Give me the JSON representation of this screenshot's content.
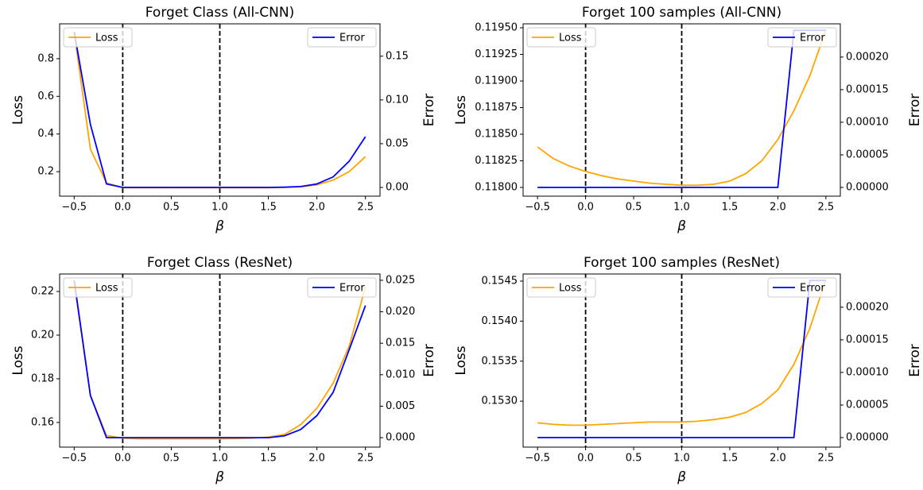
{
  "chart_data": [
    {
      "type": "line",
      "title": "Forget Class (All-CNN)",
      "xlabel": "β",
      "ylabel": "Loss",
      "y2label": "Error",
      "x": [
        -0.5,
        -0.333,
        -0.167,
        0,
        0.167,
        0.333,
        0.5,
        0.667,
        0.833,
        1,
        1.167,
        1.333,
        1.5,
        1.667,
        1.833,
        2,
        2.167,
        2.333,
        2.5
      ],
      "xlim": [
        -0.65,
        2.65
      ],
      "xticks": [
        {
          "value": -0.5,
          "label": "−0.5"
        },
        {
          "value": 0,
          "label": "0.0"
        },
        0.5,
        {
          "value": 1,
          "label": "1.0"
        },
        1.5,
        {
          "value": 2,
          "label": "2.0"
        },
        2.5
      ],
      "ylim": [
        0.07,
        0.985
      ],
      "yticks": [
        0.2,
        0.4,
        0.6,
        0.8
      ],
      "y2lim": [
        -0.01,
        0.187
      ],
      "y2ticks": [
        {
          "value": 0,
          "label": "0.00"
        },
        0.05,
        {
          "value": 0.1,
          "label": "0.10"
        },
        0.15
      ],
      "vlines": [
        0,
        1
      ],
      "legend": [
        "upper left",
        "upper right"
      ],
      "series": [
        {
          "name": "Loss",
          "color": "#ffa500",
          "axis": "y",
          "values": [
            0.94,
            0.32,
            0.14,
            0.115,
            0.115,
            0.115,
            0.115,
            0.115,
            0.115,
            0.115,
            0.115,
            0.115,
            0.115,
            0.116,
            0.12,
            0.13,
            0.155,
            0.2,
            0.28
          ]
        },
        {
          "name": "Error",
          "color": "#0000ff",
          "axis": "y2",
          "values": [
            0.178,
            0.072,
            0.004,
            0,
            0,
            0,
            0,
            0,
            0,
            0,
            0,
            0,
            0,
            0.0003,
            0.001,
            0.004,
            0.012,
            0.03,
            0.058
          ]
        }
      ]
    },
    {
      "type": "line",
      "title": "Forget 100 samples (All-CNN)",
      "xlabel": "β",
      "ylabel": "Loss",
      "y2label": "Error",
      "x": [
        -0.5,
        -0.333,
        -0.167,
        0,
        0.167,
        0.333,
        0.5,
        0.667,
        0.833,
        1,
        1.167,
        1.333,
        1.5,
        1.667,
        1.833,
        2,
        2.167,
        2.333,
        2.5
      ],
      "xlim": [
        -0.65,
        2.65
      ],
      "xticks": [
        {
          "value": -0.5,
          "label": "−0.5"
        },
        {
          "value": 0,
          "label": "0.0"
        },
        0.5,
        {
          "value": 1,
          "label": "1.0"
        },
        1.5,
        {
          "value": 2,
          "label": "2.0"
        },
        2.5
      ],
      "ylim": [
        0.117918,
        0.119537
      ],
      "yticks": [
        {
          "value": 0.118,
          "label": "0.11800"
        },
        0.11825,
        {
          "value": 0.1185,
          "label": "0.11850"
        },
        0.11875,
        {
          "value": 0.119,
          "label": "0.11900"
        },
        0.11925,
        {
          "value": 0.1195,
          "label": "0.11950"
        }
      ],
      "y2lim": [
        -1.34e-05,
        0.000251
      ],
      "y2ticks": [
        {
          "value": 0,
          "label": "0.00000"
        },
        {
          "value": 5e-05,
          "label": "0.00005"
        },
        {
          "value": 0.0001,
          "label": "0.00010"
        },
        {
          "value": 0.00015,
          "label": "0.00015"
        },
        {
          "value": 0.0002,
          "label": "0.00020"
        }
      ],
      "vlines": [
        0,
        1
      ],
      "legend": [
        "upper left",
        "upper right"
      ],
      "series": [
        {
          "name": "Loss",
          "color": "#ffa500",
          "axis": "y",
          "values": [
            0.11838,
            0.11827,
            0.1182,
            0.11815,
            0.11811,
            0.11808,
            0.11806,
            0.11804,
            0.11803,
            0.11802,
            0.11802,
            0.11803,
            0.11806,
            0.11813,
            0.11825,
            0.11845,
            0.11872,
            0.11905,
            0.11948
          ]
        },
        {
          "name": "Error",
          "color": "#0000ff",
          "axis": "y2",
          "values": [
            0,
            0,
            0,
            0,
            0,
            0,
            0,
            0,
            0,
            0,
            0,
            0,
            0,
            0,
            0,
            0,
            0.000241,
            0.000241,
            0.000241
          ]
        }
      ]
    },
    {
      "type": "line",
      "title": "Forget Class (ResNet)",
      "xlabel": "β",
      "ylabel": "Loss",
      "y2label": "Error",
      "x": [
        -0.5,
        -0.333,
        -0.167,
        0,
        0.167,
        0.333,
        0.5,
        0.667,
        0.833,
        1,
        1.167,
        1.333,
        1.5,
        1.667,
        1.833,
        2,
        2.167,
        2.333,
        2.5
      ],
      "xlim": [
        -0.65,
        2.65
      ],
      "xticks": [
        {
          "value": -0.5,
          "label": "−0.5"
        },
        {
          "value": 0,
          "label": "0.0"
        },
        0.5,
        {
          "value": 1,
          "label": "1.0"
        },
        1.5,
        {
          "value": 2,
          "label": "2.0"
        },
        2.5
      ],
      "ylim": [
        0.1487,
        0.228
      ],
      "yticks": [
        0.16,
        0.18,
        {
          "value": 0.2,
          "label": "0.20"
        },
        0.22
      ],
      "y2lim": [
        -0.0015,
        0.026
      ],
      "y2ticks": [
        {
          "value": 0,
          "label": "0.000"
        },
        0.005,
        {
          "value": 0.01,
          "label": "0.010"
        },
        0.015,
        {
          "value": 0.02,
          "label": "0.020"
        },
        0.025
      ],
      "vlines": [
        0,
        1
      ],
      "legend": [
        "upper left",
        "upper right"
      ],
      "series": [
        {
          "name": "Loss",
          "color": "#ffa500",
          "axis": "y",
          "values": [
            0.224,
            0.1724,
            0.154,
            0.1528,
            0.1525,
            0.1525,
            0.1525,
            0.1525,
            0.1525,
            0.1525,
            0.1526,
            0.1528,
            0.1533,
            0.1545,
            0.159,
            0.1665,
            0.178,
            0.195,
            0.222
          ]
        },
        {
          "name": "Error",
          "color": "#0000ff",
          "axis": "y2",
          "values": [
            0.025,
            0.0067,
            0,
            0,
            0,
            0,
            0,
            0,
            0,
            0,
            0,
            0,
            0,
            0.0003,
            0.0013,
            0.0035,
            0.0072,
            0.014,
            0.021
          ]
        }
      ]
    },
    {
      "type": "line",
      "title": "Forget 100 samples (ResNet)",
      "xlabel": "β",
      "ylabel": "Loss",
      "y2label": "Error",
      "x": [
        -0.5,
        -0.333,
        -0.167,
        0,
        0.167,
        0.333,
        0.5,
        0.667,
        0.833,
        1,
        1.167,
        1.333,
        1.5,
        1.667,
        1.833,
        2,
        2.167,
        2.333,
        2.5
      ],
      "xlim": [
        -0.65,
        2.65
      ],
      "xticks": [
        {
          "value": -0.5,
          "label": "−0.5"
        },
        {
          "value": 0,
          "label": "0.0"
        },
        0.5,
        {
          "value": 1,
          "label": "1.0"
        },
        1.5,
        {
          "value": 2,
          "label": "2.0"
        },
        2.5
      ],
      "ylim": [
        0.152426,
        0.154589
      ],
      "yticks": [
        {
          "value": 0.153,
          "label": "0.1530"
        },
        0.1535,
        {
          "value": 0.154,
          "label": "0.1540"
        },
        0.1545
      ],
      "y2lim": [
        -1.46e-05,
        0.000251
      ],
      "y2ticks": [
        {
          "value": 0,
          "label": "0.00000"
        },
        {
          "value": 5e-05,
          "label": "0.00005"
        },
        {
          "value": 0.0001,
          "label": "0.00010"
        },
        {
          "value": 0.00015,
          "label": "0.00015"
        },
        {
          "value": 0.0002,
          "label": "0.00020"
        }
      ],
      "vlines": [
        0,
        1
      ],
      "legend": [
        "upper left",
        "upper right"
      ],
      "series": [
        {
          "name": "Loss",
          "color": "#ffa500",
          "axis": "y",
          "values": [
            0.15273,
            0.15271,
            0.1527,
            0.1527,
            0.15271,
            0.15272,
            0.15273,
            0.15274,
            0.15274,
            0.15274,
            0.15275,
            0.15277,
            0.1528,
            0.15286,
            0.15297,
            0.15314,
            0.15346,
            0.15391,
            0.15452
          ]
        },
        {
          "name": "Error",
          "color": "#0000ff",
          "axis": "y2",
          "values": [
            0,
            0,
            0,
            0,
            0,
            0,
            0,
            0,
            0,
            0,
            0,
            0,
            0,
            0,
            0,
            0,
            0,
            0.000241,
            0.000241
          ]
        }
      ]
    }
  ]
}
